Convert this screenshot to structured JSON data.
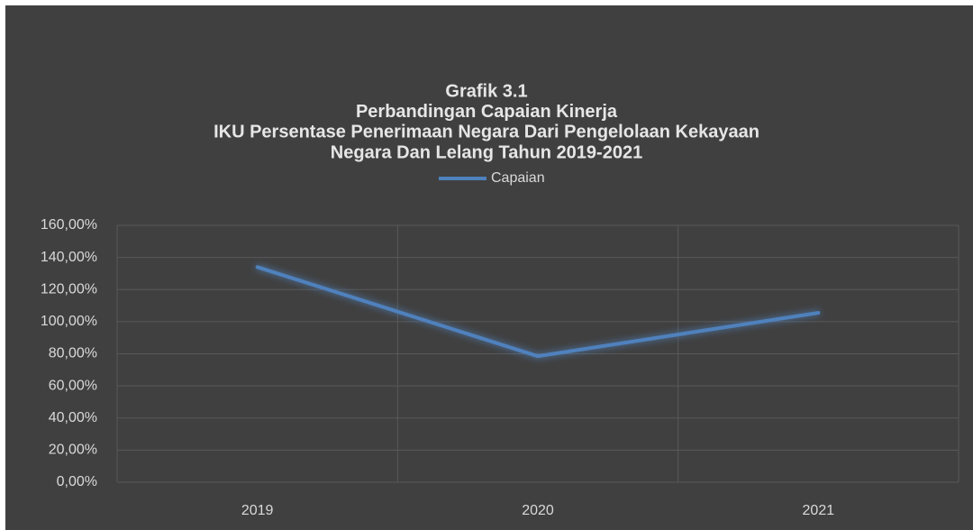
{
  "chart_data": {
    "type": "line",
    "title": [
      "Grafik 3.1",
      "Perbandingan Capaian Kinerja",
      "IKU Persentase Penerimaan Negara Dari Pengelolaan Kekayaan",
      "Negara Dan Lelang Tahun  2019-2021"
    ],
    "categories": [
      "2019",
      "2020",
      "2021"
    ],
    "series": [
      {
        "name": "Capaian",
        "color": "#4f81bd",
        "values": [
          134,
          78.5,
          105.5
        ]
      }
    ],
    "ylim": [
      0,
      160
    ],
    "yticks": [
      {
        "value": 0,
        "label": "0,00%"
      },
      {
        "value": 20,
        "label": "20,00%"
      },
      {
        "value": 40,
        "label": "40,00%"
      },
      {
        "value": 60,
        "label": "60,00%"
      },
      {
        "value": 80,
        "label": "80,00%"
      },
      {
        "value": 100,
        "label": "100,00%"
      },
      {
        "value": 120,
        "label": "120,00%"
      },
      {
        "value": 140,
        "label": "140,00%"
      },
      {
        "value": 160,
        "label": "160,00%"
      }
    ],
    "grid": true,
    "legend": "top"
  }
}
